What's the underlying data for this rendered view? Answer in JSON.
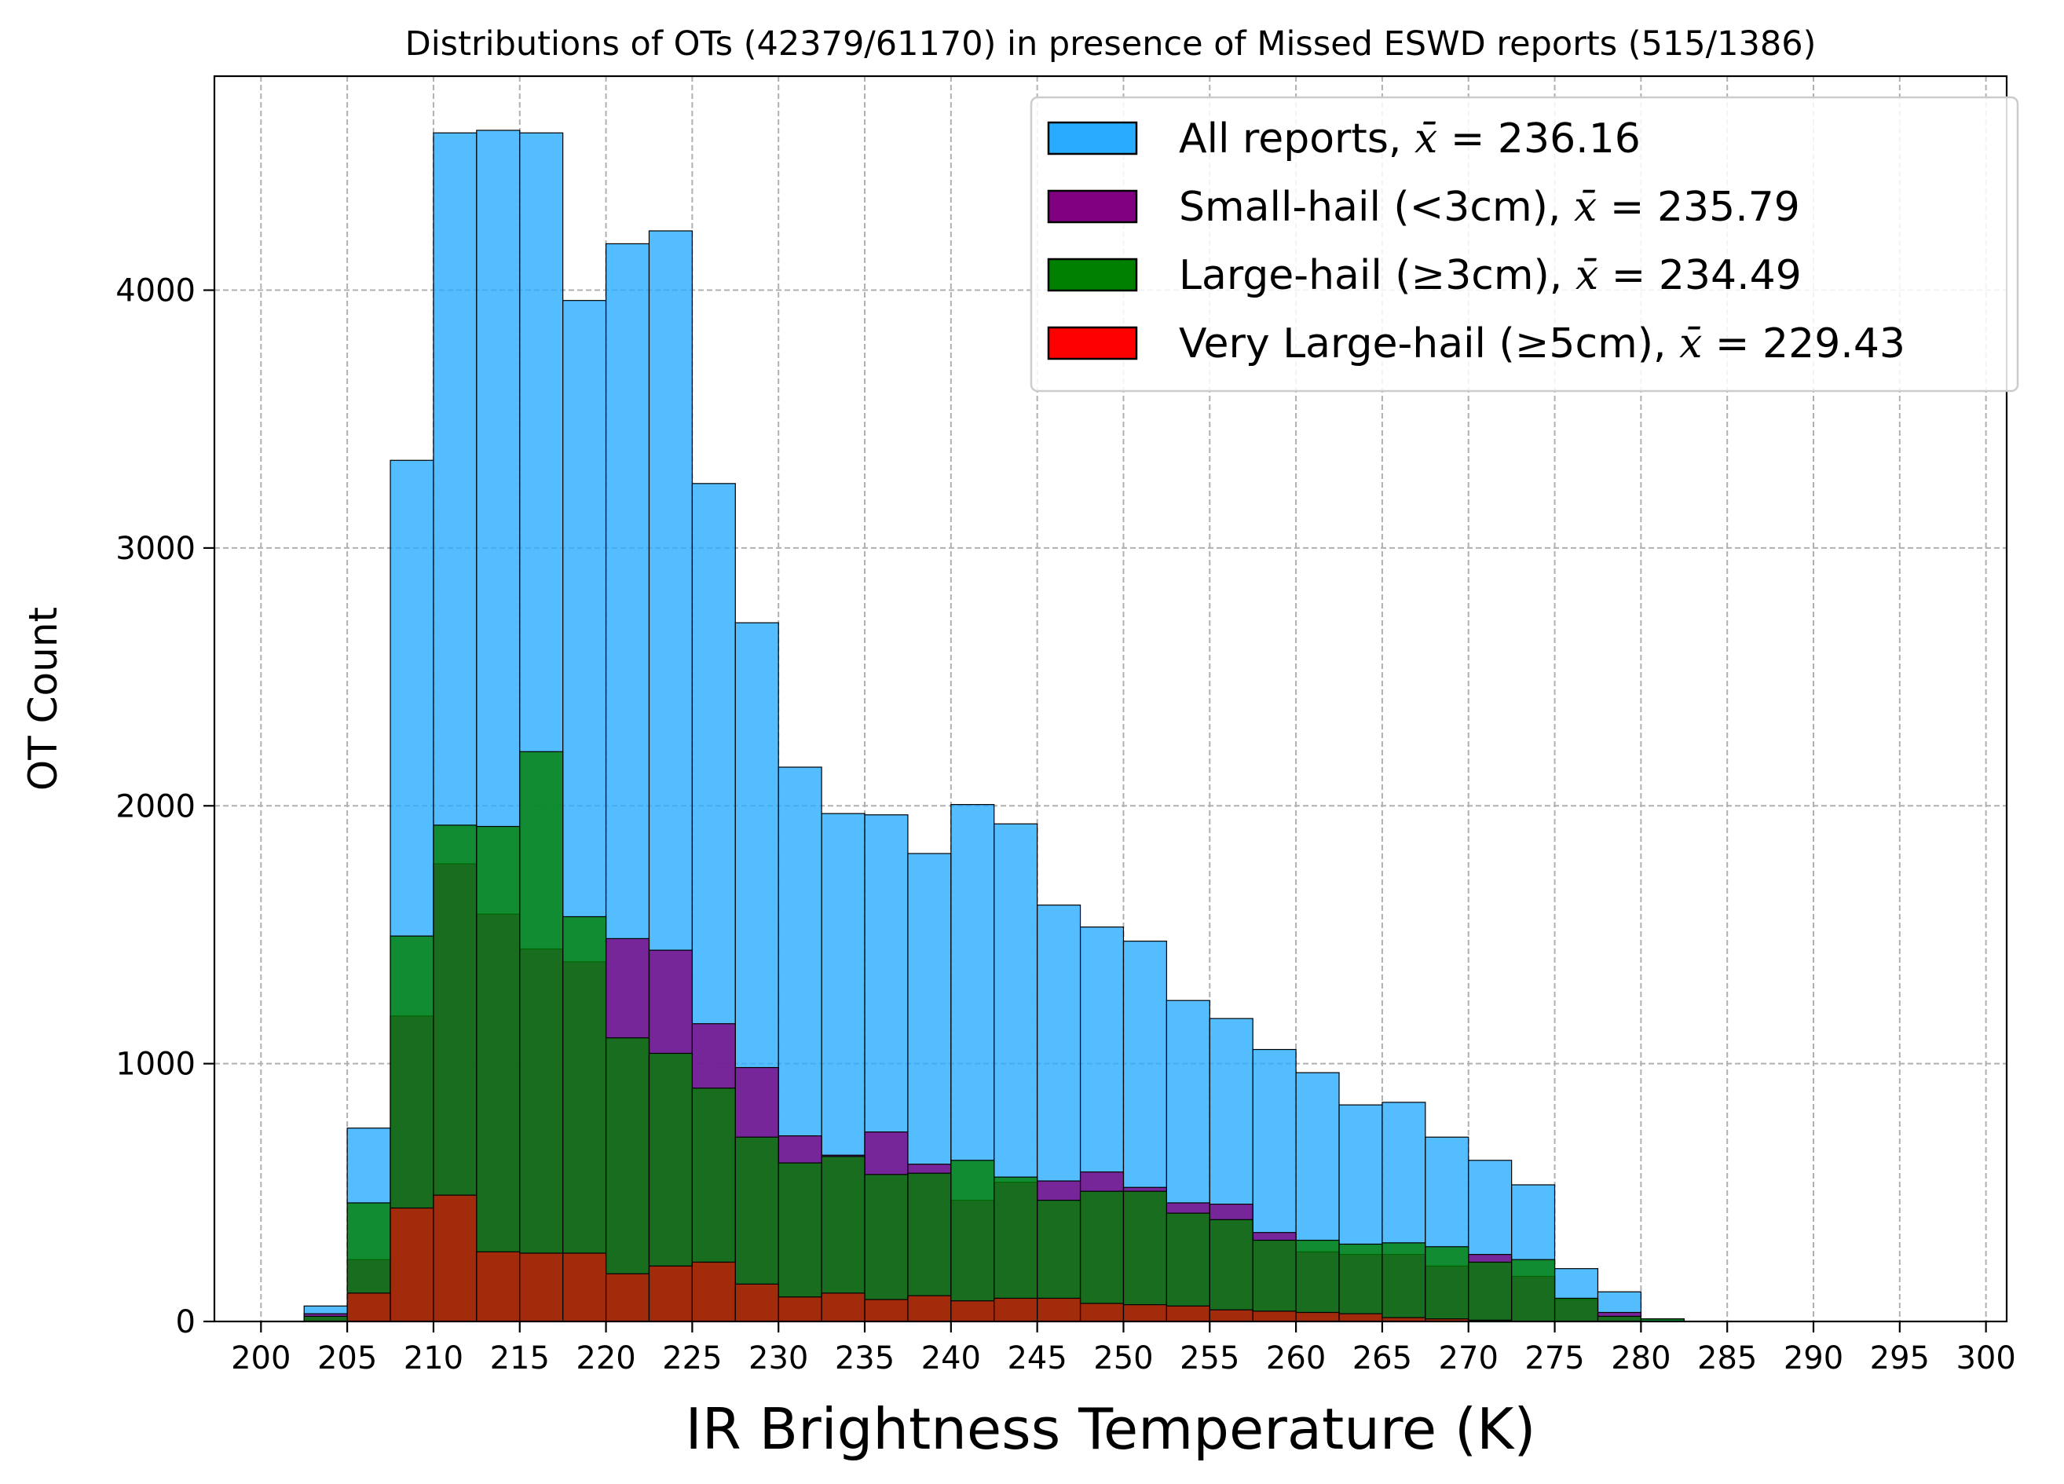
{
  "chart_data": {
    "type": "bar",
    "title": "Distributions of OTs (42379/61170) in presence of Missed ESWD reports (515/1386)",
    "xlabel": "IR Brightness Temperature (K)",
    "ylabel": "OT Count",
    "xlim": [
      197.3,
      301.2
    ],
    "ylim": [
      0,
      4830
    ],
    "xticks": [
      200,
      205,
      210,
      215,
      220,
      225,
      230,
      235,
      240,
      245,
      250,
      255,
      260,
      265,
      270,
      275,
      280,
      285,
      290,
      295,
      300
    ],
    "yticks": [
      0,
      1000,
      2000,
      3000,
      4000
    ],
    "grid": true,
    "legend_position": "top-right",
    "bin_width": 2.5,
    "bin_starts": [
      202.5,
      205,
      207.5,
      210,
      212.5,
      215,
      217.5,
      220,
      222.5,
      225,
      227.5,
      230,
      232.5,
      235,
      237.5,
      240,
      242.5,
      245,
      247.5,
      250,
      252.5,
      255,
      257.5,
      260,
      262.5,
      265,
      267.5,
      270,
      272.5,
      275,
      277.5,
      280,
      282.5,
      285,
      287.5,
      290,
      292.5,
      295
    ],
    "series": [
      {
        "name": "All reports",
        "legend_prefix": "All reports, ",
        "mean_label": "236.16",
        "color": "#29acff",
        "alpha": 0.8,
        "values": [
          60,
          750,
          3340,
          4610,
          4620,
          4610,
          3960,
          4180,
          4230,
          3250,
          2710,
          2150,
          1970,
          1965,
          1815,
          2005,
          1930,
          1615,
          1530,
          1475,
          1245,
          1175,
          1055,
          965,
          840,
          850,
          715,
          625,
          530,
          205,
          115,
          10,
          0,
          0,
          0,
          0,
          0,
          0
        ]
      },
      {
        "name": "Small-hail (<3cm)",
        "legend_prefix": "Small-hail (",
        "legend_rel": "<",
        "legend_after": "3cm), ",
        "mean_label": "235.79",
        "color": "#800080",
        "alpha": 0.8,
        "values": [
          30,
          240,
          1185,
          1775,
          1580,
          1445,
          1395,
          1485,
          1440,
          1155,
          985,
          720,
          645,
          735,
          610,
          470,
          540,
          545,
          580,
          520,
          460,
          455,
          345,
          270,
          260,
          260,
          215,
          260,
          175,
          85,
          35,
          0,
          0,
          0,
          0,
          0,
          0,
          0
        ]
      },
      {
        "name": "Large-hail (≥3cm)",
        "legend_prefix": "Large-hail (",
        "legend_rel": "≥",
        "legend_after": "3cm), ",
        "mean_label": "234.49",
        "color": "#008000",
        "alpha": 0.8,
        "values": [
          20,
          460,
          1495,
          1925,
          1920,
          2210,
          1570,
          1100,
          1040,
          905,
          715,
          615,
          640,
          570,
          575,
          625,
          560,
          470,
          505,
          505,
          420,
          395,
          315,
          315,
          300,
          305,
          290,
          230,
          240,
          90,
          20,
          10,
          0,
          0,
          0,
          0,
          0,
          0
        ]
      },
      {
        "name": "Very Large-hail (≥5cm)",
        "legend_prefix": "Very Large-hail (",
        "legend_rel": "≥",
        "legend_after": "5cm), ",
        "mean_label": "229.43",
        "color": "#ff0000",
        "alpha": 0.6,
        "values": [
          0,
          110,
          440,
          490,
          270,
          265,
          265,
          185,
          215,
          230,
          145,
          95,
          110,
          85,
          100,
          80,
          90,
          90,
          70,
          65,
          60,
          45,
          40,
          35,
          30,
          15,
          10,
          5,
          0,
          0,
          0,
          0,
          0,
          0,
          0,
          0,
          0,
          0
        ]
      }
    ]
  }
}
